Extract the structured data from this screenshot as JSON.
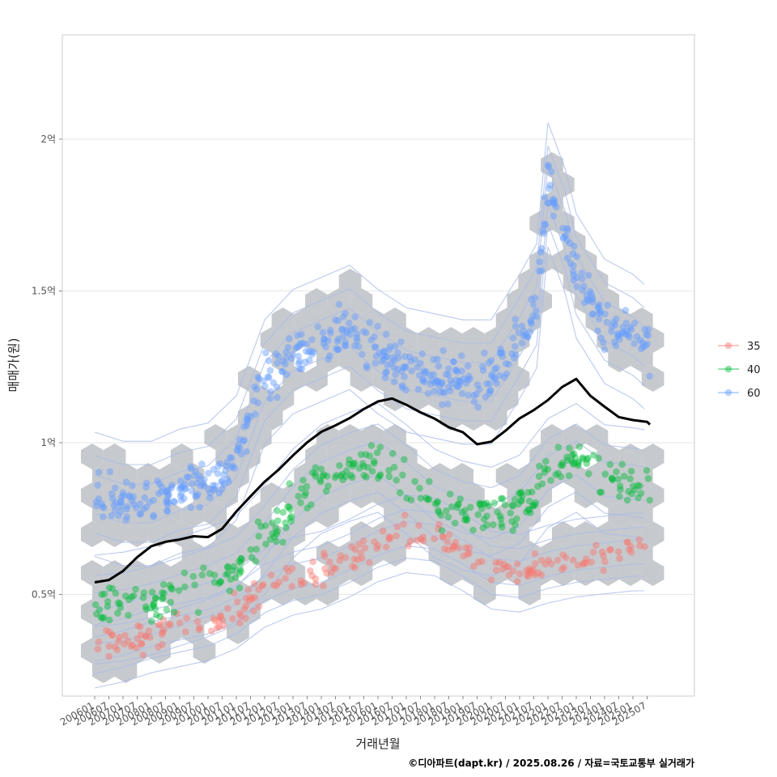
{
  "chart_data": {
    "type": "scatter",
    "title": "",
    "xlabel": "거래년월",
    "ylabel": "매매가(원)",
    "caption": "©디아파트(dapt.kr) / 2025.08.26 / 자료=국토교통부 실거래가",
    "xlim": [
      2006.0,
      2026.0
    ],
    "ylim": [
      0.17,
      2.35
    ],
    "y_unit": "억",
    "grid": true,
    "legend_position": "right",
    "y_ticks": [
      {
        "value": 0.5,
        "label": "0.5억"
      },
      {
        "value": 1.0,
        "label": "1억"
      },
      {
        "value": 1.5,
        "label": "1.5억"
      },
      {
        "value": 2.0,
        "label": "2억"
      }
    ],
    "x_tick_labels": [
      "200601",
      "200607",
      "200701",
      "200707",
      "200801",
      "200807",
      "200901",
      "200907",
      "201001",
      "201007",
      "201101",
      "201107",
      "201201",
      "201207",
      "201301",
      "201307",
      "201401",
      "201407",
      "201501",
      "201507",
      "201601",
      "201607",
      "201701",
      "201707",
      "201801",
      "201807",
      "201901",
      "201907",
      "202001",
      "202007",
      "202101",
      "202107",
      "202201",
      "202207",
      "202301",
      "202307",
      "202401",
      "202407",
      "202501",
      "202507"
    ],
    "legend": [
      {
        "name": "35",
        "color": "#F8766D"
      },
      {
        "name": "40",
        "color": "#00BA38"
      },
      {
        "name": "60",
        "color": "#619CFF"
      }
    ],
    "series": [
      {
        "name": "35",
        "color": "#F8766D",
        "trend": [
          [
            2006.0,
            0.32
          ],
          [
            2007.0,
            0.34
          ],
          [
            2008.0,
            0.37
          ],
          [
            2009.0,
            0.39
          ],
          [
            2010.0,
            0.41
          ],
          [
            2011.0,
            0.45
          ],
          [
            2012.0,
            0.52
          ],
          [
            2013.0,
            0.56
          ],
          [
            2014.0,
            0.58
          ],
          [
            2015.0,
            0.62
          ],
          [
            2016.0,
            0.67
          ],
          [
            2017.0,
            0.7
          ],
          [
            2018.0,
            0.69
          ],
          [
            2019.0,
            0.64
          ],
          [
            2020.0,
            0.58
          ],
          [
            2021.0,
            0.57
          ],
          [
            2022.0,
            0.6
          ],
          [
            2023.0,
            0.62
          ],
          [
            2024.0,
            0.63
          ],
          [
            2025.0,
            0.64
          ],
          [
            2025.6,
            0.64
          ]
        ],
        "spread": 0.05
      },
      {
        "name": "40",
        "color": "#00BA38",
        "trend": [
          [
            2006.0,
            0.45
          ],
          [
            2007.0,
            0.46
          ],
          [
            2008.0,
            0.48
          ],
          [
            2009.0,
            0.51
          ],
          [
            2010.0,
            0.54
          ],
          [
            2011.0,
            0.58
          ],
          [
            2012.0,
            0.68
          ],
          [
            2013.0,
            0.8
          ],
          [
            2014.0,
            0.88
          ],
          [
            2015.0,
            0.92
          ],
          [
            2016.0,
            0.95
          ],
          [
            2017.0,
            0.88
          ],
          [
            2018.0,
            0.8
          ],
          [
            2019.0,
            0.76
          ],
          [
            2020.0,
            0.74
          ],
          [
            2021.0,
            0.78
          ],
          [
            2022.0,
            0.9
          ],
          [
            2023.0,
            0.95
          ],
          [
            2024.0,
            0.88
          ],
          [
            2025.0,
            0.87
          ],
          [
            2025.6,
            0.86
          ]
        ],
        "spread": 0.07
      },
      {
        "name": "60",
        "color": "#619CFF",
        "trend": [
          [
            2006.0,
            0.83
          ],
          [
            2007.0,
            0.8
          ],
          [
            2008.0,
            0.8
          ],
          [
            2009.0,
            0.84
          ],
          [
            2010.0,
            0.86
          ],
          [
            2011.0,
            0.95
          ],
          [
            2012.0,
            1.2
          ],
          [
            2013.0,
            1.3
          ],
          [
            2014.0,
            1.34
          ],
          [
            2015.0,
            1.38
          ],
          [
            2016.0,
            1.3
          ],
          [
            2017.0,
            1.24
          ],
          [
            2018.0,
            1.22
          ],
          [
            2019.0,
            1.2
          ],
          [
            2020.0,
            1.2
          ],
          [
            2021.0,
            1.35
          ],
          [
            2021.6,
            1.45
          ],
          [
            2022.0,
            1.85
          ],
          [
            2022.6,
            1.7
          ],
          [
            2023.0,
            1.55
          ],
          [
            2024.0,
            1.4
          ],
          [
            2025.0,
            1.35
          ],
          [
            2025.6,
            1.3
          ]
        ],
        "spread": 0.08
      }
    ],
    "median_line": {
      "color": "#000000",
      "points": [
        [
          2006.0,
          0.54
        ],
        [
          2006.5,
          0.55
        ],
        [
          2007.0,
          0.58
        ],
        [
          2007.5,
          0.62
        ],
        [
          2008.0,
          0.66
        ],
        [
          2008.5,
          0.67
        ],
        [
          2009.0,
          0.68
        ],
        [
          2009.5,
          0.69
        ],
        [
          2010.0,
          0.69
        ],
        [
          2010.5,
          0.72
        ],
        [
          2011.0,
          0.77
        ],
        [
          2011.5,
          0.82
        ],
        [
          2012.0,
          0.87
        ],
        [
          2012.5,
          0.91
        ],
        [
          2013.0,
          0.96
        ],
        [
          2013.5,
          1.0
        ],
        [
          2014.0,
          1.04
        ],
        [
          2014.5,
          1.06
        ],
        [
          2015.0,
          1.08
        ],
        [
          2015.5,
          1.11
        ],
        [
          2016.0,
          1.14
        ],
        [
          2016.5,
          1.15
        ],
        [
          2017.0,
          1.12
        ],
        [
          2017.5,
          1.1
        ],
        [
          2018.0,
          1.08
        ],
        [
          2018.5,
          1.05
        ],
        [
          2019.0,
          1.03
        ],
        [
          2019.5,
          1.0
        ],
        [
          2020.0,
          1.0
        ],
        [
          2020.5,
          1.04
        ],
        [
          2021.0,
          1.08
        ],
        [
          2021.5,
          1.11
        ],
        [
          2022.0,
          1.14
        ],
        [
          2022.5,
          1.18
        ],
        [
          2023.0,
          1.21
        ],
        [
          2023.5,
          1.15
        ],
        [
          2024.0,
          1.12
        ],
        [
          2024.5,
          1.08
        ],
        [
          2025.0,
          1.07
        ],
        [
          2025.5,
          1.07
        ],
        [
          2025.6,
          1.06
        ]
      ]
    }
  }
}
